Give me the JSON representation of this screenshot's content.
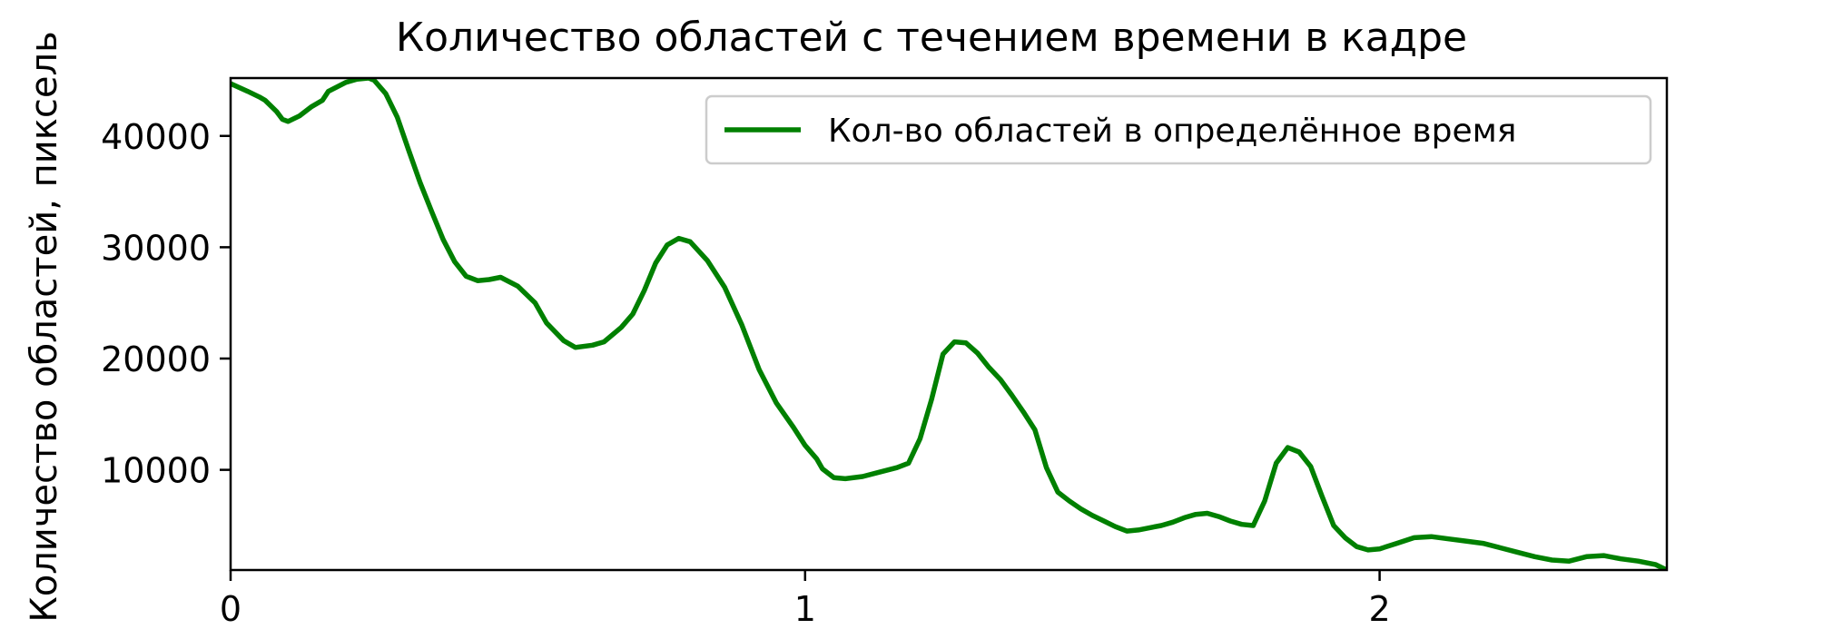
{
  "chart_data": {
    "type": "line",
    "title": "Количество областей с течением времени в кадре",
    "xlabel": "",
    "ylabel": "Количество областей, пиксель",
    "xlim": [
      0,
      2.5
    ],
    "ylim": [
      1000,
      45200
    ],
    "x_ticks": [
      0,
      1,
      2
    ],
    "x_tick_labels": [
      "0",
      "1",
      "2"
    ],
    "y_ticks": [
      10000,
      20000,
      30000,
      40000
    ],
    "y_tick_labels": [
      "10000",
      "20000",
      "30000",
      "40000"
    ],
    "grid": false,
    "legend": {
      "position": "top-right"
    },
    "series": [
      {
        "name": "Кол-во областей в определённое время",
        "color": "#008000",
        "x": [
          0,
          0.03,
          0.05,
          0.06,
          0.08,
          0.09,
          0.1,
          0.12,
          0.14,
          0.16,
          0.17,
          0.2,
          0.22,
          0.24,
          0.25,
          0.27,
          0.29,
          0.31,
          0.33,
          0.35,
          0.37,
          0.39,
          0.41,
          0.43,
          0.45,
          0.47,
          0.5,
          0.53,
          0.55,
          0.58,
          0.6,
          0.63,
          0.65,
          0.68,
          0.7,
          0.72,
          0.74,
          0.76,
          0.78,
          0.8,
          0.83,
          0.86,
          0.89,
          0.92,
          0.95,
          0.98,
          1.0,
          1.02,
          1.03,
          1.05,
          1.07,
          1.1,
          1.13,
          1.16,
          1.18,
          1.2,
          1.22,
          1.24,
          1.26,
          1.28,
          1.3,
          1.32,
          1.34,
          1.36,
          1.38,
          1.4,
          1.42,
          1.44,
          1.46,
          1.48,
          1.5,
          1.52,
          1.54,
          1.56,
          1.58,
          1.6,
          1.62,
          1.64,
          1.66,
          1.68,
          1.7,
          1.72,
          1.74,
          1.76,
          1.78,
          1.8,
          1.82,
          1.84,
          1.86,
          1.88,
          1.9,
          1.92,
          1.94,
          1.96,
          1.98,
          2.0,
          2.03,
          2.06,
          2.09,
          2.12,
          2.15,
          2.18,
          2.21,
          2.24,
          2.27,
          2.3,
          2.33,
          2.36,
          2.39,
          2.42,
          2.45,
          2.48,
          2.5
        ],
        "y": [
          44700,
          44000,
          43500,
          43200,
          42200,
          41500,
          41300,
          41800,
          42600,
          43200,
          44000,
          44800,
          45100,
          45200,
          45000,
          43800,
          41700,
          38700,
          35800,
          33200,
          30700,
          28700,
          27400,
          27000,
          27100,
          27300,
          26500,
          25000,
          23200,
          21600,
          21000,
          21200,
          21500,
          22800,
          24000,
          26100,
          28600,
          30200,
          30800,
          30500,
          28800,
          26400,
          23000,
          19000,
          16000,
          13800,
          12200,
          11000,
          10100,
          9300,
          9200,
          9400,
          9800,
          10200,
          10600,
          12800,
          16300,
          20400,
          21500,
          21400,
          20500,
          19200,
          18100,
          16700,
          15200,
          13600,
          10200,
          8000,
          7200,
          6500,
          5900,
          5400,
          4900,
          4500,
          4600,
          4800,
          5000,
          5300,
          5700,
          6000,
          6100,
          5800,
          5400,
          5100,
          5000,
          7200,
          10600,
          12000,
          11600,
          10300,
          7600,
          5000,
          3900,
          3100,
          2800,
          2900,
          3400,
          3900,
          4000,
          3800,
          3600,
          3400,
          3000,
          2600,
          2200,
          1900,
          1800,
          2200,
          2300,
          2000,
          1800,
          1500,
          1000
        ]
      }
    ]
  }
}
